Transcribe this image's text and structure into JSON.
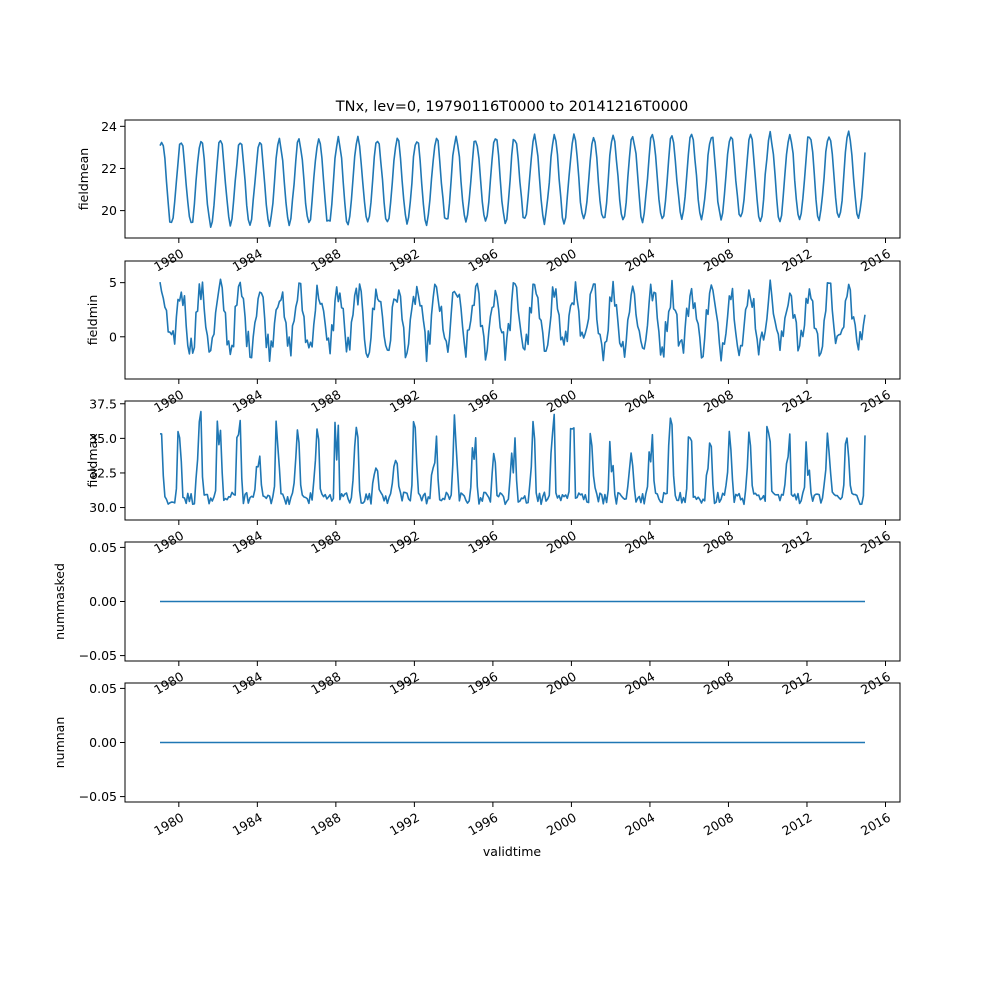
{
  "chart_data": {
    "type": "line",
    "title": "TNx, lev=0, 19790116T0000 to 20141216T0000",
    "xlabel": "validtime",
    "x_range": [
      "1979-01-16",
      "2014-12-16"
    ],
    "xticks": [
      "1980",
      "1984",
      "1988",
      "1992",
      "1996",
      "2000",
      "2004",
      "2008",
      "2012",
      "2016"
    ],
    "grid": false,
    "subplots": [
      {
        "ylabel": "fieldmean",
        "ylim": [
          18.7,
          24.3
        ],
        "yticks": [
          "20",
          "22",
          "24"
        ],
        "ytick_values": [
          20,
          22,
          24
        ],
        "series": {
          "type": "seasonal",
          "mean": 21.3,
          "amp": 2.0,
          "trend_end": 0.35
        }
      },
      {
        "ylabel": "fieldmin",
        "ylim": [
          -3.9,
          7.0
        ],
        "yticks": [
          "0",
          "5"
        ],
        "ytick_values": [
          0,
          5
        ],
        "series": {
          "type": "seasonal_noisy",
          "mean": 1.6,
          "amp": 2.6,
          "min": -3.3,
          "max": 6.6
        }
      },
      {
        "ylabel": "fieldmax",
        "ylim": [
          29.1,
          37.7
        ],
        "yticks": [
          "30.0",
          "32.5",
          "35.0",
          "37.5"
        ],
        "ytick_values": [
          30.0,
          32.5,
          35.0,
          37.5
        ],
        "series": {
          "type": "spiky",
          "base": 30.5,
          "max": 37.4
        }
      },
      {
        "ylabel": "nummasked",
        "ylim": [
          -0.055,
          0.055
        ],
        "yticks": [
          "−0.05",
          "0.00",
          "0.05"
        ],
        "ytick_values": [
          -0.05,
          0.0,
          0.05
        ],
        "series": {
          "type": "constant",
          "value": 0.0
        }
      },
      {
        "ylabel": "numnan",
        "ylim": [
          -0.055,
          0.055
        ],
        "yticks": [
          "−0.05",
          "0.00",
          "0.05"
        ],
        "ytick_values": [
          -0.05,
          0.0,
          0.05
        ],
        "series": {
          "type": "constant",
          "value": 0.0
        }
      }
    ]
  }
}
